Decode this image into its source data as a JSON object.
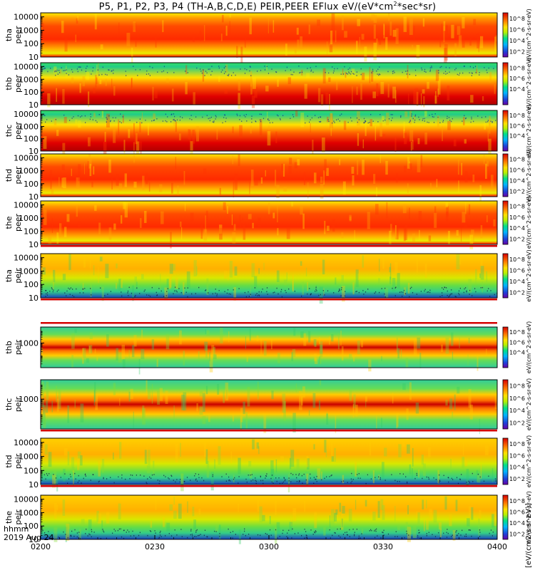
{
  "title": "P5, P1, P2, P3, P4 (TH-A,B,C,D,E) PEIR,PEER EFlux eV/(eV*cm",
  "title_sup": "2",
  "title_end": "*sec*sr)",
  "colorbar_label": "[eV/(cm2-s sr-eV)]",
  "colorbar_label_repeat": "eV/(cm^2-s-sr-eV)",
  "colorbar_ticks": [
    "10^2",
    "10^4",
    "10^6",
    "10^8"
  ],
  "colors": {
    "high": "#cc0000",
    "mid": "#ffcc00",
    "low": "#22cc66",
    "floor": "#0044cc"
  },
  "time_label": "hhmm",
  "date_label": "2019 Aug 24",
  "chart_data": {
    "type": "heatmap",
    "x_ticks": [
      "0200",
      "0230",
      "0300",
      "0330",
      "0400"
    ],
    "x_range": [
      "02:00",
      "04:00"
    ],
    "y_scale": "log",
    "panels": [
      {
        "probe": "tha",
        "species": "peer",
        "y_ticks": [
          "10",
          "100",
          "1000",
          "10000"
        ],
        "y_range": [
          10,
          20000
        ]
      },
      {
        "probe": "thb",
        "species": "peer",
        "y_ticks": [
          "10",
          "100",
          "1000",
          "10000"
        ],
        "y_range": [
          10,
          20000
        ]
      },
      {
        "probe": "thc",
        "species": "peer",
        "y_ticks": [
          "10",
          "100",
          "1000",
          "10000"
        ],
        "y_range": [
          10,
          20000
        ]
      },
      {
        "probe": "thd",
        "species": "peer",
        "y_ticks": [
          "10",
          "100",
          "1000",
          "10000"
        ],
        "y_range": [
          10,
          20000
        ]
      },
      {
        "probe": "the",
        "species": "peer",
        "y_ticks": [
          "10",
          "100",
          "1000",
          "10000"
        ],
        "y_range": [
          10,
          20000
        ]
      },
      {
        "probe": "tha",
        "species": "peir",
        "y_ticks": [
          "10",
          "100",
          "1000",
          "10000"
        ],
        "y_range": [
          10,
          20000
        ]
      },
      {
        "probe": "thb",
        "species": "peir",
        "y_ticks": [
          "1000"
        ],
        "y_range": [
          10,
          20000
        ]
      },
      {
        "probe": "thc",
        "species": "peir",
        "y_ticks": [
          "1000"
        ],
        "y_range": [
          10,
          20000
        ]
      },
      {
        "probe": "thd",
        "species": "peir",
        "y_ticks": [
          "10",
          "100",
          "1000",
          "10000"
        ],
        "y_range": [
          10,
          20000
        ]
      },
      {
        "probe": "the",
        "species": "peir",
        "y_ticks": [
          "10",
          "100",
          "1000",
          "10000"
        ],
        "y_range": [
          10,
          20000
        ]
      }
    ]
  }
}
